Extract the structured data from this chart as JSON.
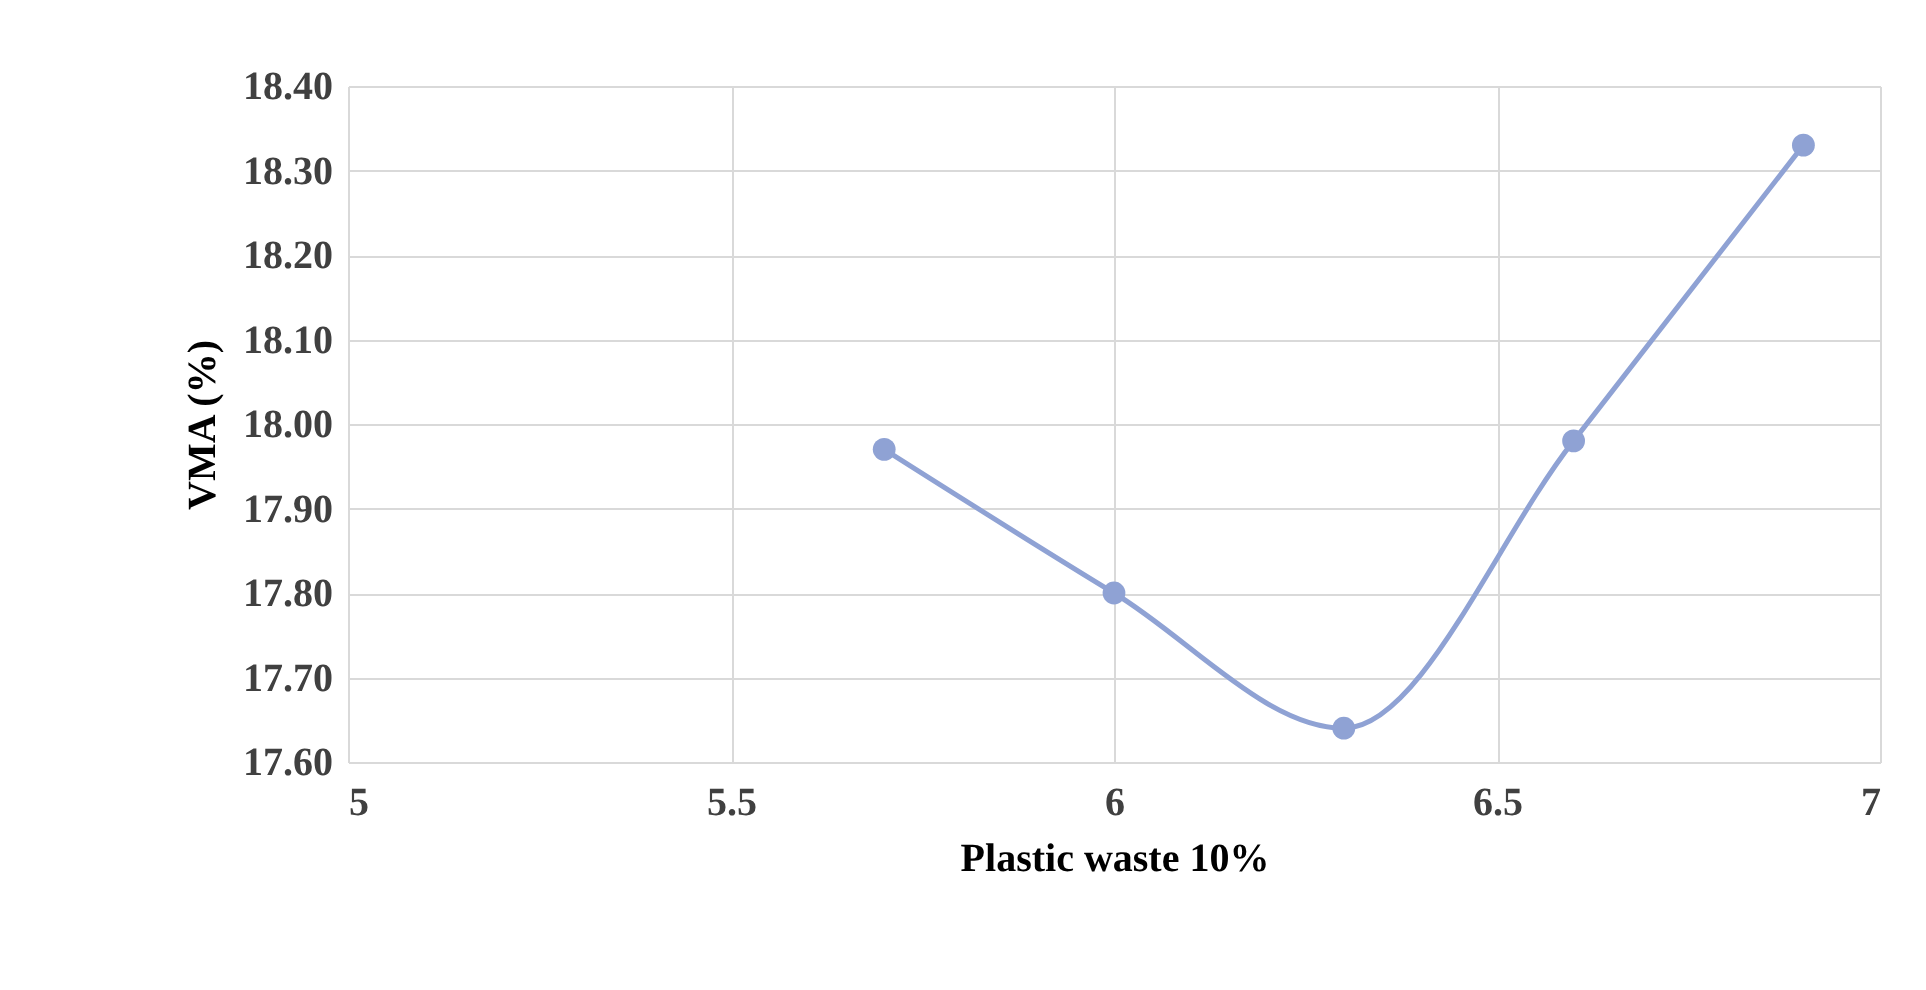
{
  "chart_data": {
    "type": "line",
    "xlabel": "Plastic waste 10%",
    "ylabel": "VMA (%)",
    "x": [
      5.7,
      6,
      6.3,
      6.6,
      6.9
    ],
    "series": [
      {
        "color": "#8fa2d4",
        "values": [
          17.97,
          17.8,
          17.64,
          17.98,
          18.33
        ]
      }
    ],
    "xlim": [
      5,
      7
    ],
    "xticks": [
      5,
      5.5,
      6,
      6.5,
      7
    ],
    "ylim": [
      17.6,
      18.4
    ],
    "yticks": [
      {
        "value": 17.6,
        "label": "17.60"
      },
      {
        "value": 17.7,
        "label": "17.70"
      },
      {
        "value": 17.8,
        "label": "17.80"
      },
      {
        "value": 17.9,
        "label": "17.90"
      },
      {
        "value": 18.0,
        "label": "18.00"
      },
      {
        "value": 18.1,
        "label": "18.10"
      },
      {
        "value": 18.2,
        "label": "18.20"
      },
      {
        "value": 18.3,
        "label": "18.30"
      },
      {
        "value": 18.4,
        "label": "18.40"
      }
    ],
    "grid": true,
    "marker": "circle",
    "line_style": "solid"
  }
}
